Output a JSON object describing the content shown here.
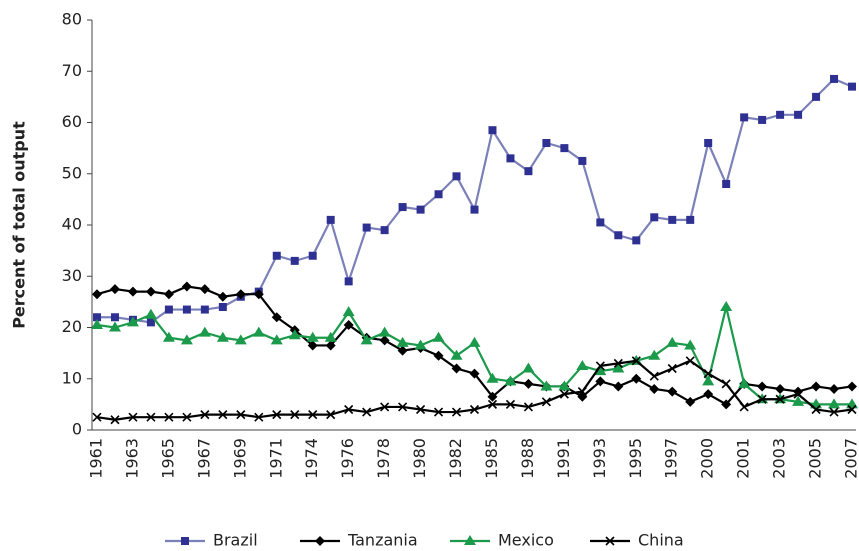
{
  "chart_data": {
    "type": "line",
    "y_label": "Percent of total output",
    "categories": [
      "1961",
      null,
      "1963",
      null,
      "1965",
      null,
      "1967",
      null,
      "1969",
      null,
      "1971",
      null,
      "1974",
      null,
      "1976",
      null,
      "1978",
      null,
      "1980",
      null,
      "1982",
      null,
      "1985",
      null,
      "1988",
      null,
      "1991",
      null,
      "1993",
      null,
      "1995",
      null,
      "1997",
      null,
      "2000",
      null,
      "2001",
      null,
      "2003",
      null,
      "2005",
      null,
      "2007"
    ],
    "series": [
      {
        "name": "Brazil",
        "color": "#2e3192",
        "line_color": "#7b80b9",
        "marker": "square",
        "values": [
          22,
          22,
          21.5,
          21,
          23.5,
          23.5,
          23.5,
          24,
          26,
          27,
          34,
          33,
          34,
          41,
          29,
          39.5,
          39,
          43.5,
          43,
          46,
          49.5,
          43,
          58.5,
          53,
          50.5,
          56,
          55,
          52.5,
          40.5,
          38,
          37,
          41.5,
          41,
          41,
          56,
          48,
          61,
          60.5,
          61.5,
          61.5,
          65,
          68.5,
          67
        ]
      },
      {
        "name": "Tanzania",
        "color": "#000000",
        "line_color": "#000000",
        "marker": "diamond",
        "values": [
          26.5,
          27.5,
          27,
          27,
          26.5,
          28,
          27.5,
          26,
          26.5,
          26.5,
          22,
          19.5,
          16.5,
          16.5,
          20.5,
          18,
          17.5,
          15.5,
          16,
          14.5,
          12,
          11,
          6.5,
          9.5,
          9,
          8.5,
          8.5,
          6.5,
          9.5,
          8.5,
          10,
          8,
          7.5,
          5.5,
          7,
          5,
          9,
          8.5,
          8,
          7.5,
          8.5,
          8,
          8.5
        ]
      },
      {
        "name": "Mexico",
        "color": "#1a9a4a",
        "line_color": "#1a9a4a",
        "marker": "triangle",
        "values": [
          20.5,
          20,
          21,
          22.5,
          18,
          17.5,
          19,
          18,
          17.5,
          19,
          17.5,
          18.5,
          18,
          18,
          23,
          17.5,
          19,
          17,
          16.5,
          18,
          14.5,
          17,
          10,
          9.5,
          12,
          8.5,
          8.5,
          12.5,
          11.5,
          12,
          13.5,
          14.5,
          17,
          16.5,
          9.5,
          24,
          9,
          6,
          6,
          5.5,
          5,
          5,
          5
        ]
      },
      {
        "name": "China",
        "color": "#000000",
        "line_color": "#000000",
        "marker": "x",
        "values": [
          2.5,
          2,
          2.5,
          2.5,
          2.5,
          2.5,
          3,
          3,
          3,
          2.5,
          3,
          3,
          3,
          3,
          4,
          3.5,
          4.5,
          4.5,
          4,
          3.5,
          3.5,
          4,
          5,
          5,
          4.5,
          5.5,
          7,
          7.5,
          12.5,
          13,
          13.5,
          10.5,
          12,
          13.5,
          11,
          9,
          4.5,
          6,
          6,
          7,
          4,
          3.5,
          4
        ]
      }
    ],
    "ylim": [
      0,
      80
    ],
    "yticks": [
      0,
      10,
      20,
      30,
      40,
      50,
      60,
      70,
      80
    ],
    "legend": "bottom"
  }
}
